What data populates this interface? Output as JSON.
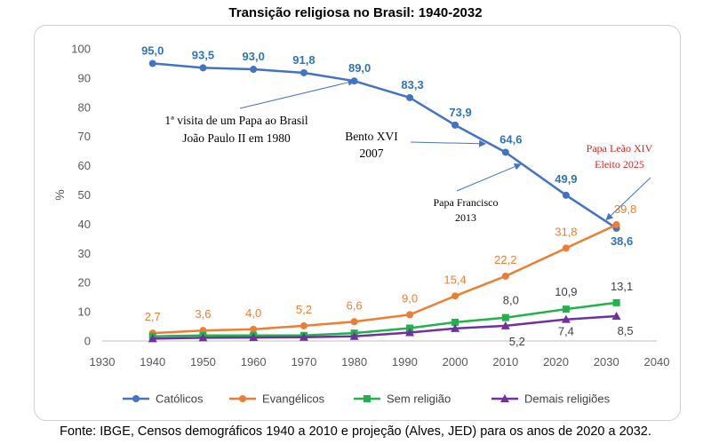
{
  "title": "Transição religiosa no Brasil: 1940-2032",
  "source": "Fonte: IBGE, Censos demográficos 1940 a 2010 e projeção (Alves, JED) para os anos de 2020 a 2032.",
  "chart_data": {
    "type": "line",
    "ylabel": "%",
    "xlabel": "",
    "xlim": [
      1930,
      2040
    ],
    "ylim": [
      0,
      100
    ],
    "x_ticks": [
      1930,
      1940,
      1950,
      1960,
      1970,
      1980,
      1990,
      2000,
      2010,
      2020,
      2030,
      2040
    ],
    "y_ticks": [
      0,
      10,
      20,
      30,
      40,
      50,
      60,
      70,
      80,
      90,
      100
    ],
    "grid": false,
    "legend_position": "bottom",
    "series": [
      {
        "name": "Católicos",
        "color": "#4472c4",
        "marker": "circle",
        "x": [
          1940,
          1950,
          1960,
          1970,
          1980,
          1991,
          2000,
          2010,
          2022,
          2032
        ],
        "y": [
          95.0,
          93.5,
          93.0,
          91.8,
          89.0,
          83.3,
          73.9,
          64.6,
          49.9,
          38.6
        ],
        "labels": [
          "95,0",
          "93,5",
          "93,0",
          "91,8",
          "89,0",
          "83,3",
          "73,9",
          "64,6",
          "49,9",
          "38,6"
        ],
        "label_color": "#2e75b6"
      },
      {
        "name": "Evangélicos",
        "color": "#ed7d31",
        "marker": "circle",
        "x": [
          1940,
          1950,
          1960,
          1970,
          1980,
          1991,
          2000,
          2010,
          2022,
          2032
        ],
        "y": [
          2.7,
          3.6,
          4.0,
          5.2,
          6.6,
          9.0,
          15.4,
          22.2,
          31.8,
          39.8
        ],
        "labels": [
          "2,7",
          "3,6",
          "4,0",
          "5,2",
          "6,6",
          "9,0",
          "15,4",
          "22,2",
          "31,8",
          "39,8"
        ],
        "label_color": "#ed7d31"
      },
      {
        "name": "Sem religião",
        "color": "#21b24b",
        "marker": "square",
        "x": [
          1940,
          1950,
          1960,
          1970,
          1980,
          1991,
          2000,
          2010,
          2022,
          2032
        ],
        "y": [
          1.6,
          1.9,
          1.9,
          1.9,
          2.7,
          4.4,
          6.4,
          8.0,
          10.9,
          13.1
        ],
        "labels": [
          "",
          "",
          "",
          "",
          "",
          "",
          "",
          "8,0",
          "10,9",
          "13,1"
        ],
        "label_color": "#404040"
      },
      {
        "name": "Demais religiões",
        "color": "#7030a0",
        "marker": "triangle",
        "x": [
          1940,
          1950,
          1960,
          1970,
          1980,
          1991,
          2000,
          2010,
          2022,
          2032
        ],
        "y": [
          0.8,
          1.1,
          1.2,
          1.3,
          1.6,
          2.9,
          4.3,
          5.2,
          7.4,
          8.5
        ],
        "labels": [
          "",
          "",
          "",
          "",
          "",
          "",
          "",
          "5,2",
          "7,4",
          "8,5"
        ],
        "label_color": "#404040"
      }
    ],
    "annotations": [
      {
        "lines": [
          "1ª visita de um Papa ao Brasil",
          "João Paulo II em 1980"
        ],
        "style": "normal",
        "target": [
          1980,
          89.0
        ]
      },
      {
        "lines": [
          "Bento XVI",
          "2007"
        ],
        "style": "normal",
        "target": [
          2006,
          67.5
        ]
      },
      {
        "lines": [
          "Papa Francisco",
          "2013"
        ],
        "style": "small",
        "target": [
          2013,
          60.5
        ]
      },
      {
        "lines": [
          "Papa Leão XIV",
          "Eleito 2025"
        ],
        "style": "red",
        "target": [
          2030,
          41.5
        ]
      }
    ]
  }
}
